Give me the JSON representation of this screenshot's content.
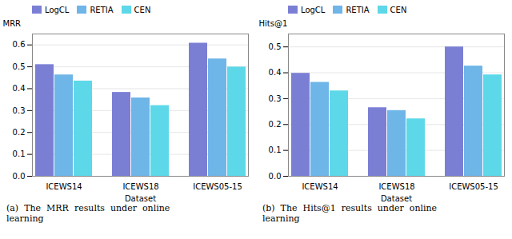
{
  "chart_data": [
    {
      "type": "bar",
      "categories": [
        "ICEWS14",
        "ICEWS18",
        "ICEWS05-15"
      ],
      "series": [
        {
          "name": "LogCL",
          "color": "#7B7FD4",
          "values": [
            0.51,
            0.383,
            0.608
          ]
        },
        {
          "name": "RETIA",
          "color": "#6EB5E8",
          "values": [
            0.463,
            0.358,
            0.536
          ]
        },
        {
          "name": "CEN",
          "color": "#5DD8E8",
          "values": [
            0.435,
            0.323,
            0.499
          ]
        }
      ],
      "xlabel": "Dataset",
      "ylabel": "MRR",
      "ylim": [
        0.0,
        0.65
      ],
      "yticks": [
        {
          "value": 0.0,
          "label": "0.0"
        },
        0.1,
        0.2,
        0.3,
        0.4,
        0.5,
        0.6
      ],
      "grid": true,
      "legend": "upper left",
      "annotations": [
        "(a)  The  MRR  results  under  online",
        "learning"
      ]
    },
    {
      "type": "bar",
      "categories": [
        "ICEWS14",
        "ICEWS18",
        "ICEWS05-15"
      ],
      "series": [
        {
          "name": "LogCL",
          "color": "#7B7FD4",
          "values": [
            0.398,
            0.265,
            0.5
          ]
        },
        {
          "name": "RETIA",
          "color": "#6EB5E8",
          "values": [
            0.363,
            0.254,
            0.426
          ]
        },
        {
          "name": "CEN",
          "color": "#5DD8E8",
          "values": [
            0.33,
            0.222,
            0.392
          ]
        }
      ],
      "xlabel": "Dataset",
      "ylabel": "Hits@1",
      "ylim": [
        0.0,
        0.55
      ],
      "yticks": [
        {
          "value": 0.0,
          "label": "0.0"
        },
        0.1,
        0.2,
        0.3,
        0.4,
        0.5
      ],
      "grid": true,
      "legend": "upper left",
      "annotations": [
        "(b)  The  Hits@1  results  under  online",
        "learning"
      ]
    }
  ]
}
